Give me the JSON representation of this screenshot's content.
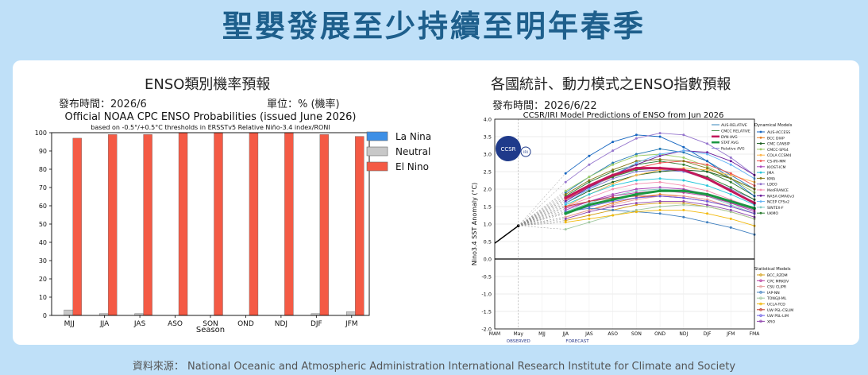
{
  "header": {
    "title": "聖嬰發展至少持續至明年春季"
  },
  "left_panel": {
    "title": "ENSO類別機率預報",
    "issued": "發布時間：2026/6",
    "unit": "單位：% (機率)"
  },
  "right_panel": {
    "title": "各國統計、動力模式之ENSO指數預報",
    "issued": "發布時間：2026/6/22"
  },
  "footer": {
    "source": "資料來源： National Oceanic and Atmospheric Administration  International Research Institute for Climate and Society"
  },
  "chart_data": [
    {
      "type": "bar",
      "title": "Official NOAA CPC ENSO Probabilities (issued June 2026)",
      "subtitle": "based on -0.5°/+0.5°C thresholds in ERSSTv5 Relative Niño-3.4 index/RONI",
      "xlabel": "Season",
      "ylabel": "",
      "ylim": [
        0,
        100
      ],
      "yticks": [
        0,
        10,
        20,
        30,
        40,
        50,
        60,
        70,
        80,
        90,
        100
      ],
      "categories": [
        "MJJ",
        "JJA",
        "JAS",
        "ASO",
        "SON",
        "OND",
        "NDJ",
        "DJF",
        "JFM"
      ],
      "series": [
        {
          "name": "La Nina",
          "color": "#3d8fe6",
          "values": [
            0,
            0,
            0,
            0,
            0,
            0,
            0,
            0,
            0
          ]
        },
        {
          "name": "Neutral",
          "color": "#c8c8c8",
          "values": [
            3,
            1,
            1,
            0,
            0,
            0,
            0,
            1,
            2
          ]
        },
        {
          "name": "El Nino",
          "color": "#f45a45",
          "values": [
            97,
            99,
            99,
            100,
            100,
            100,
            100,
            99,
            98
          ]
        }
      ],
      "legend": "right",
      "grid": false
    },
    {
      "type": "line",
      "title": "CCSR/IRI Model Predictions of ENSO from Jun 2026",
      "ylabel": "Nino3.4 SST Anomaly (°C)",
      "x": [
        "MAM",
        "May",
        "MJJ",
        "JJA",
        "JAS",
        "ASO",
        "SON",
        "OND",
        "NDJ",
        "DJF",
        "JFM",
        "FMA"
      ],
      "xnotes": {
        "observed": "OBSERVED",
        "forecast": "FORECAST"
      },
      "ylim": [
        -2.0,
        4.0
      ],
      "yticks": [
        "-2.0",
        "-1.5",
        "-1.0",
        "-0.5",
        "0.0",
        "0.5",
        "1.0",
        "1.5",
        "2.0",
        "2.5",
        "3.0",
        "3.5",
        "4.0"
      ],
      "observed": [
        0.45,
        0.95
      ],
      "avg_series": [
        {
          "name": "DYN AVG",
          "color": "#c2185b",
          "values": [
            1.75,
            2.1,
            2.4,
            2.6,
            2.6,
            2.55,
            2.3,
            1.95,
            1.6
          ]
        },
        {
          "name": "STAT AVG",
          "color": "#1a9641",
          "values": [
            1.3,
            1.55,
            1.7,
            1.85,
            1.95,
            1.95,
            1.85,
            1.65,
            1.45
          ]
        }
      ],
      "model_series": [
        {
          "name": "AUS-RELATIVE",
          "color": "#1f77b4",
          "values": [
            1.9,
            2.35,
            2.75,
            3.0,
            3.15,
            3.05,
            2.8,
            2.4,
            2.0
          ]
        },
        {
          "name": "CMCC RELATIVE",
          "color": "#2e7d32",
          "values": [
            1.8,
            2.2,
            2.5,
            2.7,
            2.8,
            2.7,
            2.5,
            2.2,
            1.8
          ]
        },
        {
          "name": "Relative AVG",
          "color": "#7b7bcf",
          "values": [
            1.7,
            2.0,
            2.3,
            2.5,
            2.55,
            2.5,
            2.3,
            2.0,
            1.7
          ]
        },
        {
          "name": "AUS-ACCESS",
          "color": "#1565c0",
          "values": [
            2.45,
            2.95,
            3.35,
            3.55,
            3.5,
            3.2,
            2.8,
            2.3,
            1.8
          ]
        },
        {
          "name": "BCC DIAP",
          "color": "#e67e22",
          "values": [
            1.2,
            1.4,
            1.6,
            1.75,
            1.85,
            1.8,
            1.7,
            1.5,
            1.3
          ]
        },
        {
          "name": "CMC CANSIP",
          "color": "#1b5e20",
          "values": [
            1.6,
            1.95,
            2.2,
            2.4,
            2.5,
            2.55,
            2.5,
            2.3,
            2.0
          ]
        },
        {
          "name": "CMCC-SPS4",
          "color": "#9ccc65",
          "values": [
            1.95,
            2.35,
            2.7,
            2.95,
            3.0,
            2.9,
            2.65,
            2.3,
            1.9
          ]
        },
        {
          "name": "COLA CCSM4",
          "color": "#ffb74d",
          "values": [
            1.5,
            1.85,
            2.15,
            2.4,
            2.55,
            2.6,
            2.55,
            2.4,
            2.2
          ]
        },
        {
          "name": "CS-IRI-MM",
          "color": "#ef5350",
          "values": [
            1.7,
            2.05,
            2.35,
            2.6,
            2.75,
            2.8,
            2.7,
            2.45,
            2.1
          ]
        },
        {
          "name": "KIOST-ICM",
          "color": "#ab47bc",
          "values": [
            1.4,
            1.65,
            1.85,
            2.0,
            2.05,
            2.0,
            1.85,
            1.6,
            1.35
          ]
        },
        {
          "name": "JMA",
          "color": "#26c6da",
          "values": [
            1.55,
            1.85,
            2.1,
            2.25,
            2.3,
            2.25,
            2.1,
            1.85,
            1.55
          ]
        },
        {
          "name": "KMA",
          "color": "#827717",
          "values": [
            1.85,
            2.25,
            2.55,
            2.8,
            2.85,
            2.8,
            2.6,
            2.3,
            2.0
          ]
        },
        {
          "name": "LDEO",
          "color": "#9575cd",
          "values": [
            2.2,
            2.7,
            3.1,
            3.45,
            3.6,
            3.55,
            3.3,
            2.9,
            2.4
          ]
        },
        {
          "name": "MetFRANCE",
          "color": "#f48fb1",
          "values": [
            1.5,
            1.75,
            2.0,
            2.15,
            2.2,
            2.1,
            1.95,
            1.7,
            1.45
          ]
        },
        {
          "name": "NASA GMAOv3",
          "color": "#6a1b9a",
          "values": [
            1.65,
            2.05,
            2.4,
            2.7,
            2.95,
            3.1,
            3.05,
            2.8,
            2.4
          ]
        },
        {
          "name": "NCEP CFSv2",
          "color": "#64b5f6",
          "values": [
            1.6,
            2.0,
            2.4,
            2.75,
            3.0,
            3.1,
            3.0,
            2.7,
            2.3
          ]
        },
        {
          "name": "SINTEX-F",
          "color": "#80cbc4",
          "values": [
            1.35,
            1.6,
            1.8,
            1.95,
            2.0,
            1.95,
            1.8,
            1.55,
            1.3
          ]
        },
        {
          "name": "UKMO",
          "color": "#2e7d32",
          "values": [
            1.75,
            2.1,
            2.35,
            2.55,
            2.6,
            2.55,
            2.35,
            2.05,
            1.7
          ]
        },
        {
          "name": "BCC_RZDM",
          "color": "#d4a017",
          "values": [
            1.1,
            1.25,
            1.4,
            1.55,
            1.6,
            1.6,
            1.5,
            1.35,
            1.15
          ]
        },
        {
          "name": "CPC MRKOV",
          "color": "#b83fa0",
          "values": [
            1.45,
            1.65,
            1.8,
            1.9,
            1.95,
            1.9,
            1.8,
            1.6,
            1.4
          ]
        },
        {
          "name": "CSU CLIPR",
          "color": "#e8a0a0",
          "values": [
            1.2,
            1.4,
            1.55,
            1.7,
            1.8,
            1.8,
            1.7,
            1.5,
            1.3
          ]
        },
        {
          "name": "IAP-NN",
          "color": "#3f7fbf",
          "values": [
            1.35,
            1.45,
            1.4,
            1.35,
            1.3,
            1.2,
            1.05,
            0.9,
            0.7
          ]
        },
        {
          "name": "TONGJI-ML",
          "color": "#a0c8a0",
          "values": [
            0.85,
            1.05,
            1.25,
            1.4,
            1.5,
            1.55,
            1.5,
            1.35,
            1.15
          ]
        },
        {
          "name": "UCLA-TCD",
          "color": "#f2b90c",
          "values": [
            1.05,
            1.15,
            1.25,
            1.35,
            1.4,
            1.4,
            1.3,
            1.15,
            0.95
          ]
        },
        {
          "name": "UW PSL-CSLIM",
          "color": "#c0392b",
          "values": [
            1.5,
            1.65,
            1.75,
            1.8,
            1.8,
            1.75,
            1.65,
            1.5,
            1.3
          ]
        },
        {
          "name": "UW PSL-LIM",
          "color": "#6c5ce7",
          "values": [
            1.3,
            1.5,
            1.65,
            1.75,
            1.8,
            1.75,
            1.65,
            1.5,
            1.3
          ]
        },
        {
          "name": "XRO",
          "color": "#8e44ad",
          "values": [
            1.15,
            1.35,
            1.5,
            1.6,
            1.65,
            1.65,
            1.55,
            1.4,
            1.2
          ]
        }
      ],
      "legend_groups": {
        "dynamical": "Dynamical Models",
        "statistical": "Statistical Models"
      },
      "legend_top": [
        {
          "name": "AUS-RELATIVE",
          "color": "#1f77b4"
        },
        {
          "name": "CMCC RELATIVE",
          "color": "#2e7d32"
        },
        {
          "name": "DYN AVG",
          "color": "#c2185b"
        },
        {
          "name": "STAT AVG",
          "color": "#1a9641"
        },
        {
          "name": "Relative AVG",
          "color": "#7b7bcf"
        }
      ],
      "dyn_names": [
        "AUS-ACCESS",
        "BCC DIAP",
        "CMC CANSIP",
        "CMCC-SPS4",
        "COLA CCSM4",
        "CS-IRI-MM",
        "KIOST-ICM",
        "JMA",
        "KMA",
        "LDEO",
        "MetFRANCE",
        "NASA GMAOv3",
        "NCEP CFSv2",
        "SINTEX-F",
        "UKMO"
      ],
      "stat_names": [
        "BCC_RZDM",
        "CPC MRKOV",
        "CSU CLIPR",
        "IAP-NN",
        "TONGJI-ML",
        "UCLA-TCD",
        "UW PSL-CSLIM",
        "UW PSL-LIM",
        "XRO"
      ],
      "logo": {
        "main": "CCSR",
        "badge": "IRI"
      },
      "grid": true
    }
  ]
}
